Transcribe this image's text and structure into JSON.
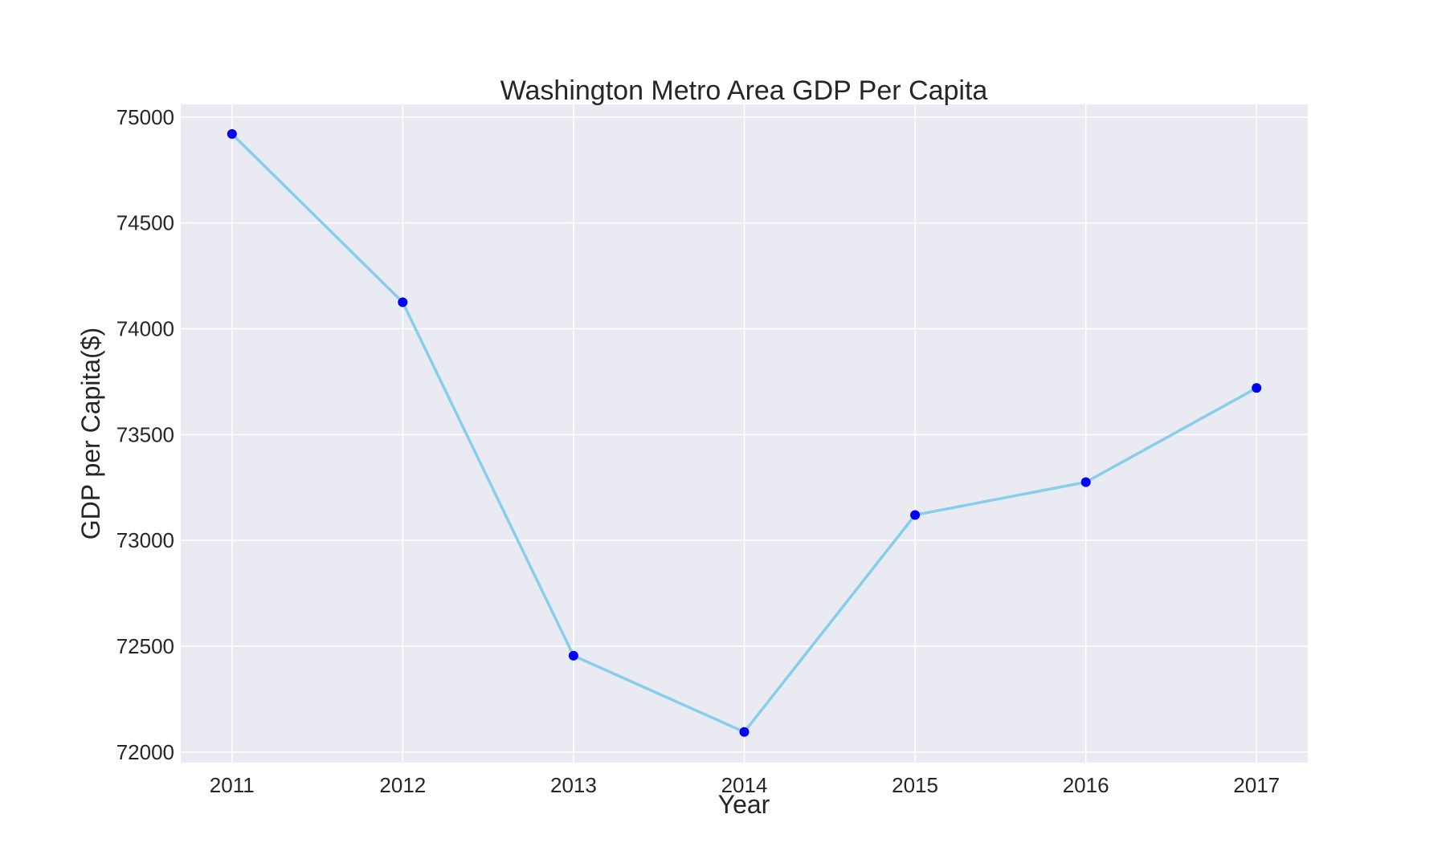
{
  "chart_data": {
    "type": "line",
    "title": "Washington Metro Area GDP Per Capita",
    "xlabel": "Year",
    "ylabel": "GDP per Capita($)",
    "x": [
      2011,
      2012,
      2013,
      2014,
      2015,
      2016,
      2017
    ],
    "x_tick_labels": [
      "2011",
      "2012",
      "2013",
      "2014",
      "2015",
      "2016",
      "2017"
    ],
    "y_ticks": [
      72000,
      72500,
      73000,
      73500,
      74000,
      74500,
      75000
    ],
    "y_tick_labels": [
      "72000",
      "72500",
      "73000",
      "73500",
      "74000",
      "74500",
      "75000"
    ],
    "series": [
      {
        "values": [
          74920,
          74125,
          72455,
          72095,
          73120,
          73275,
          73720
        ],
        "line_color": "#87ceeb",
        "marker_color": "#0000ff"
      }
    ],
    "xlim": [
      2010.7,
      2017.3
    ],
    "ylim": [
      71950,
      75060
    ],
    "grid": true,
    "plot_background": "#eaeaf2",
    "grid_color": "#ffffff"
  }
}
